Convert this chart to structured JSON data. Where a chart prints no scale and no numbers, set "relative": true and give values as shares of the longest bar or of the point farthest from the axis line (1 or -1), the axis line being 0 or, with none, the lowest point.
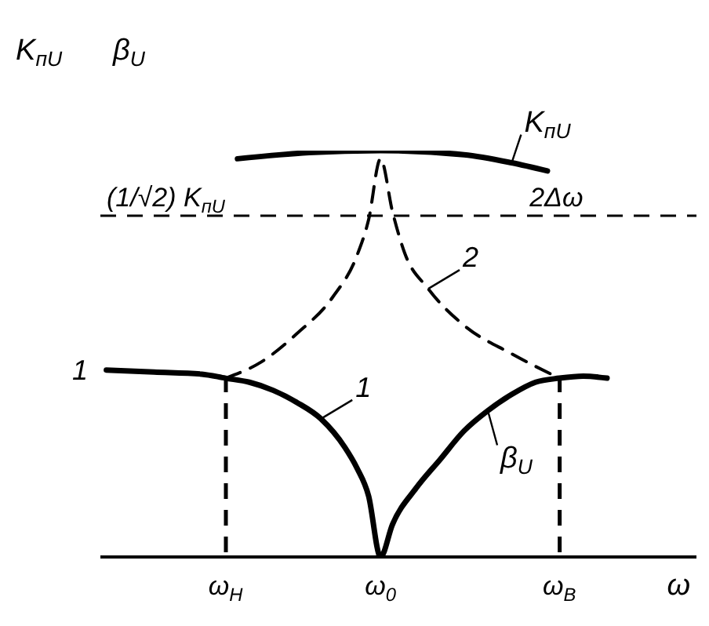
{
  "chart_data": {
    "type": "line",
    "relative": true,
    "ylabel": "K$_{пU}$",
    "xlabel": "ω",
    "categories": [
      null,
      null,
      null,
      null,
      null,
      null,
      null,
      null,
      null,
      null,
      "ω$_{Н}$",
      null,
      null,
      null,
      null,
      null,
      null,
      null,
      null,
      null,
      null,
      null,
      null,
      "ω$_{0}$",
      null,
      null,
      null,
      null,
      null,
      null,
      null,
      null,
      null,
      null,
      null,
      null,
      null,
      null,
      "ω$_{В}$",
      null,
      null,
      null,
      null
    ],
    "series": [
      {
        "name": "β$_{U}$",
        "color": "#000000",
        "line_style": "solid",
        "values": [
          0.46,
          null,
          null,
          null,
          0.455,
          null,
          null,
          null,
          0.45,
          null,
          0.44,
          null,
          0.43,
          null,
          0.41,
          null,
          0.38,
          null,
          0.34,
          null,
          0.27,
          0.22,
          0.15,
          0,
          0.08,
          null,
          0.17,
          null,
          0.24,
          null,
          0.31,
          null,
          0.36,
          null,
          0.4,
          null,
          0.43,
          null,
          0.44,
          null,
          0.445,
          null,
          0.44
        ]
      },
      {
        "color": "#000000",
        "line_style": "dashed",
        "values": [
          null,
          null,
          null,
          null,
          null,
          null,
          null,
          null,
          null,
          null,
          0.44,
          null,
          null,
          0.48,
          null,
          null,
          0.55,
          null,
          null,
          0.64,
          null,
          0.74,
          0.83,
          0.98,
          0.85,
          0.75,
          null,
          0.66,
          null,
          null,
          0.57,
          null,
          null,
          null,
          0.5,
          null,
          null,
          null,
          0.44,
          null,
          null,
          null,
          null
        ]
      },
      {
        "name": "K$_{пU}$",
        "color": "#000000",
        "line_style": "solid",
        "values": [
          null,
          null,
          null,
          null,
          null,
          null,
          null,
          null,
          null,
          null,
          null,
          0.98,
          null,
          null,
          null,
          null,
          null,
          0.995,
          null,
          null,
          null,
          null,
          null,
          1,
          null,
          null,
          null,
          null,
          null,
          null,
          0.99,
          null,
          null,
          null,
          0.97,
          null,
          null,
          0.95,
          null,
          null,
          null,
          null,
          null
        ]
      },
      {
        "type": "bar",
        "color": "#000000",
        "line_style": "dashed",
        "values": [
          null,
          null,
          null,
          null,
          null,
          null,
          null,
          null,
          null,
          null,
          0.44,
          null,
          null,
          null,
          null,
          null,
          null,
          null,
          null,
          null,
          null,
          null,
          null,
          null,
          null,
          null,
          null,
          null,
          null,
          null,
          null,
          null,
          null,
          null,
          null,
          null,
          null,
          null,
          0.44,
          null,
          null,
          null,
          null
        ]
      }
    ],
    "ref_lines": [
      {
        "axis": "y",
        "value": 0.84,
        "label": "(1/√2) K$_{пU}$",
        "color": "#000000",
        "line_style": "dashed"
      }
    ],
    "annotations": [
      "β$_{U}$",
      "1",
      "1",
      "2",
      "2Δω"
    ],
    "marker": "none"
  }
}
